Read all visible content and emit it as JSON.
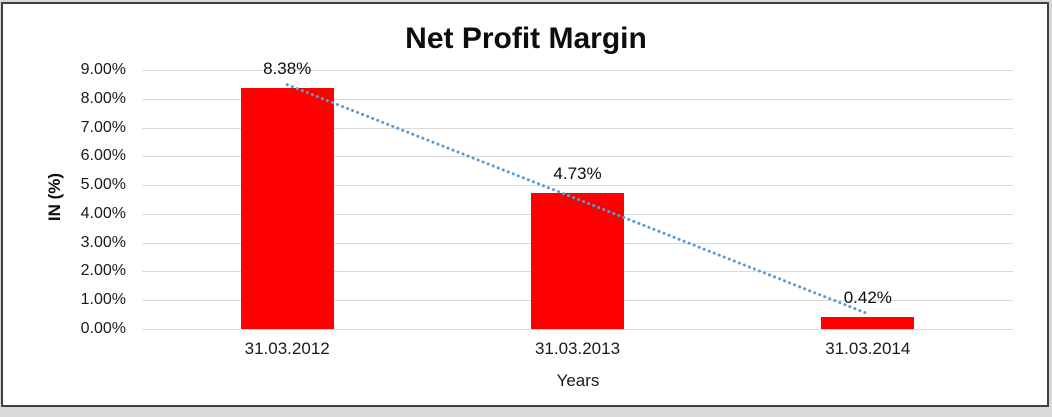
{
  "window": {
    "outer_background": "#d9d9d9",
    "frame_border_color": "#404040",
    "plot_background": "#ffffff"
  },
  "chart_data": {
    "type": "bar",
    "title": "Net Profit Margin",
    "xlabel": "Years",
    "ylabel": "IN (%)",
    "categories": [
      "31.03.2012",
      "31.03.2013",
      "31.03.2014"
    ],
    "values": [
      8.38,
      4.73,
      0.42
    ],
    "data_labels": [
      "8.38%",
      "4.73%",
      "0.42%"
    ],
    "y_ticks": [
      "9.00%",
      "8.00%",
      "7.00%",
      "6.00%",
      "5.00%",
      "4.00%",
      "3.00%",
      "2.00%",
      "1.00%",
      "0.00%"
    ],
    "ylim": [
      0,
      9
    ],
    "y_step": 1,
    "grid": true,
    "legend": "none",
    "bar_color": "#ff0000",
    "gridline_color": "#d9d9d9",
    "trendline": {
      "type": "linear",
      "style": "dotted",
      "color": "#5b9bd5"
    }
  }
}
